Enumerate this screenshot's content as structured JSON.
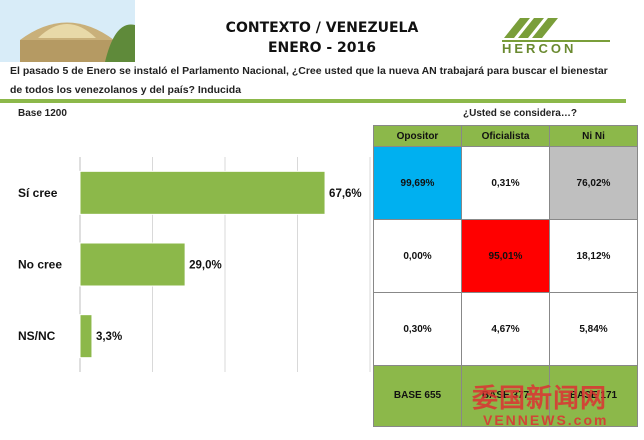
{
  "header": {
    "title_line1": "CONTEXTO / VENEZUELA",
    "title_line2": "ENERO - 2016",
    "logo_text": "HERCON"
  },
  "question": "El pasado 5 de Enero se instaló el Parlamento Nacional, ¿Cree usted que la nueva AN trabajará para buscar el bienestar de todos los venezolanos y del país? Inducida",
  "base_label": "Base 1200",
  "table_title": "¿Usted se considera…?",
  "colors": {
    "bar": "#8cb84a",
    "header_green": "#8cb84a",
    "opositor": "#00b0f0",
    "oficialista": "#ff0000",
    "nini": "#bfbfbf"
  },
  "chart_data": {
    "type": "bar",
    "orientation": "horizontal",
    "categories": [
      "Sí cree",
      "No cree",
      "NS/NC"
    ],
    "values": [
      67.6,
      29.0,
      3.3
    ],
    "value_labels": [
      "67,6%",
      "29,0%",
      "3,3%"
    ],
    "xlim": [
      0,
      80
    ],
    "grid": true
  },
  "cross_table": {
    "columns": [
      "Opositor",
      "Oficialista",
      "Ni Ni"
    ],
    "rows": [
      [
        "99,69%",
        "0,31%",
        "76,02%"
      ],
      [
        "0,00%",
        "95,01%",
        "18,12%"
      ],
      [
        "0,30%",
        "4,67%",
        "5,84%"
      ]
    ],
    "bases": [
      "BASE 655",
      "BASE 377",
      "BASE 171"
    ]
  },
  "watermark": {
    "cn": "委国新闻网",
    "url": "VENNEWS.com"
  }
}
